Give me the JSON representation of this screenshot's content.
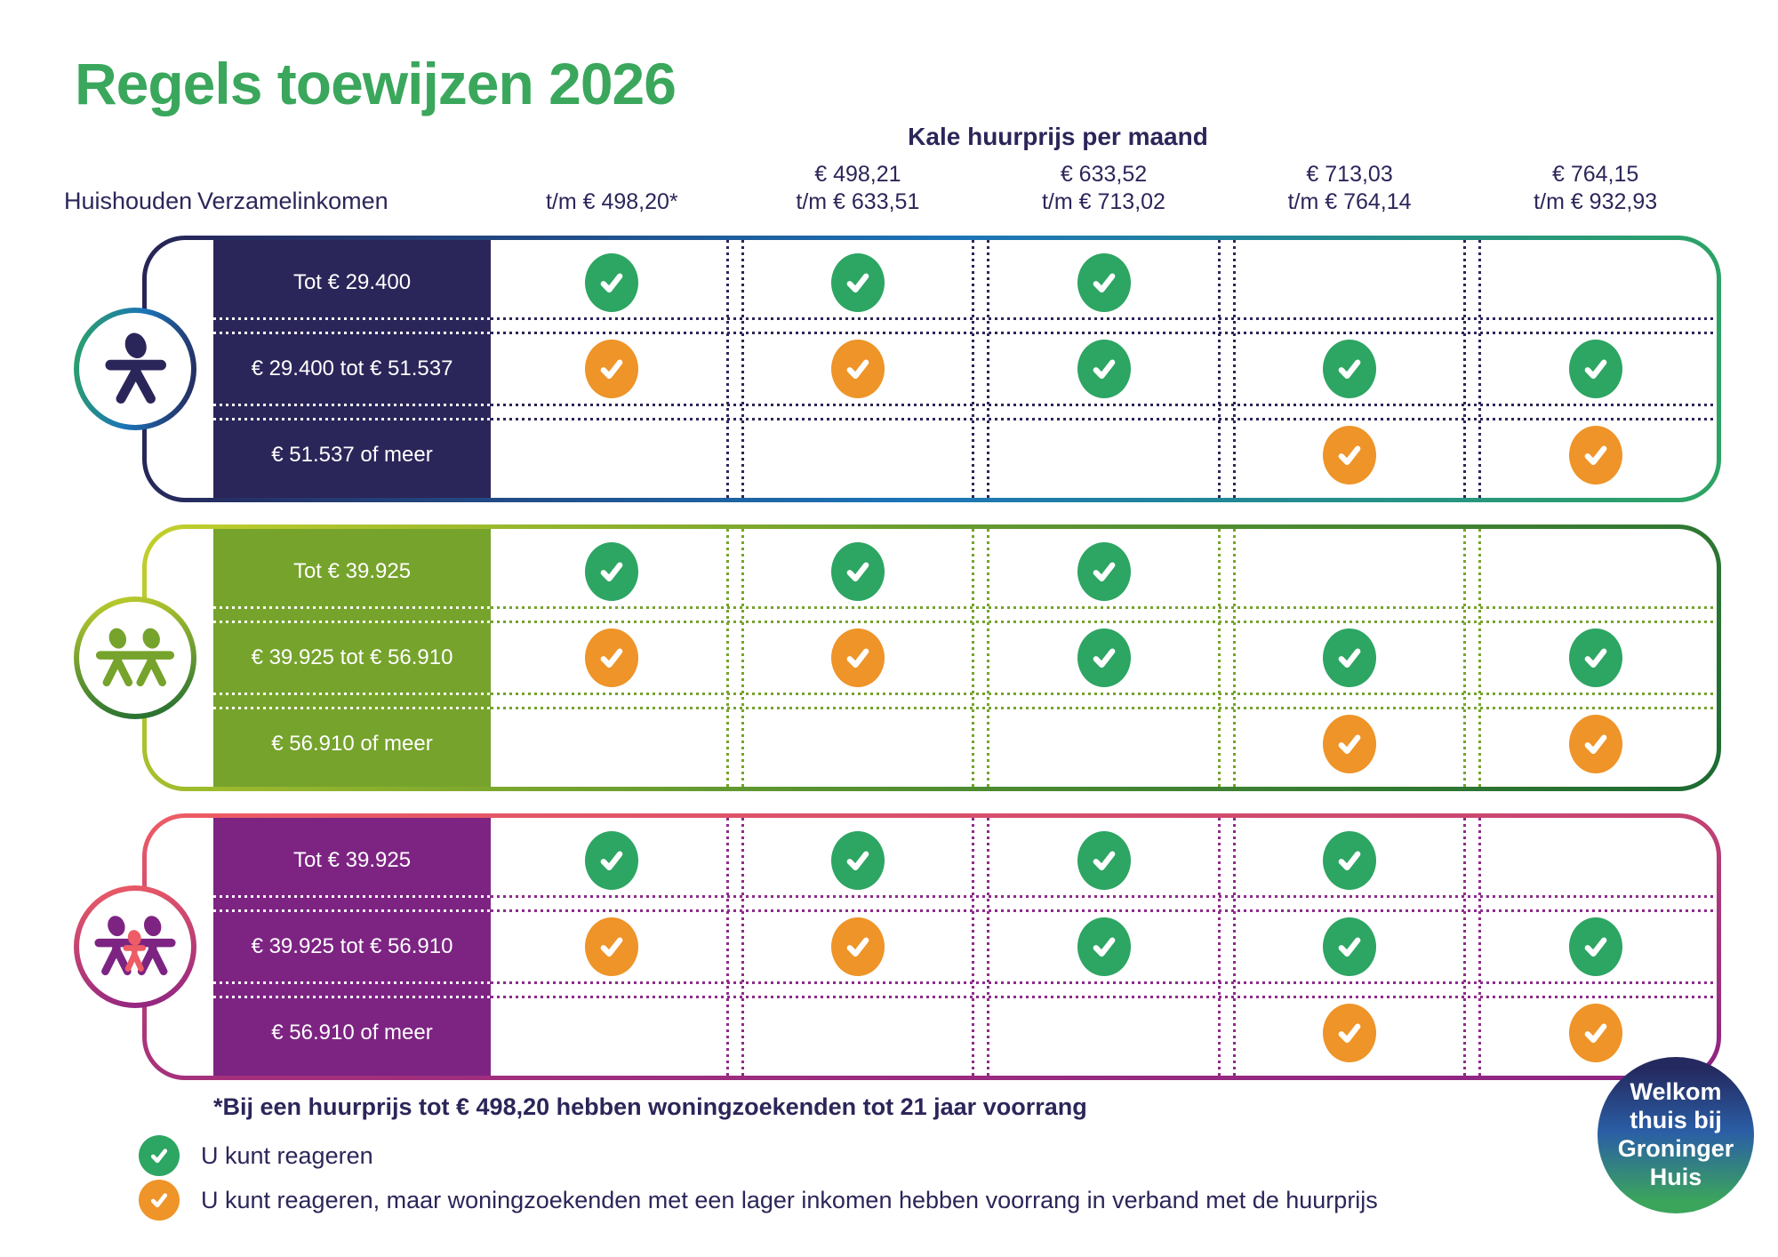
{
  "title": "Regels toewijzen 2026",
  "header": {
    "price_group": "Kale huurprijs per maand",
    "household": "Huishouden",
    "income": "Verzamelinkomen",
    "price_columns": [
      [
        "t/m € 498,20*"
      ],
      [
        "€ 498,21",
        "t/m € 633,51"
      ],
      [
        "€ 633,52",
        "t/m € 713,02"
      ],
      [
        "€ 713,03",
        "t/m € 764,14"
      ],
      [
        "€ 764,15",
        "t/m € 932,93"
      ]
    ]
  },
  "marks": {
    "green": "#2da563",
    "orange": "#ee9428"
  },
  "groups": [
    {
      "id": "single-person",
      "icon": "single-person-icon",
      "theme": {
        "label_bg": "#2b2659",
        "dash": "#2b2659",
        "border_gradient": [
          "#272355",
          "#1b74b8",
          "#2da563"
        ],
        "icon_gradient": [
          "#2da563",
          "#1b74b8",
          "#272355"
        ]
      },
      "rows": [
        {
          "income": "Tot € 29.400",
          "cells": [
            "green",
            "green",
            "green",
            null,
            null
          ]
        },
        {
          "income": "€ 29.400 tot € 51.537",
          "cells": [
            "orange",
            "orange",
            "green",
            "green",
            "green"
          ]
        },
        {
          "income": "€ 51.537 of meer",
          "cells": [
            null,
            null,
            null,
            "orange",
            "orange"
          ]
        }
      ]
    },
    {
      "id": "two-persons",
      "icon": "two-persons-icon",
      "theme": {
        "label_bg": "#76a32c",
        "dash": "#76a32c",
        "border_gradient": [
          "#c3d02c",
          "#5a9430",
          "#1c6a33"
        ],
        "icon_gradient": [
          "#c3d02c",
          "#1c6a33"
        ]
      },
      "rows": [
        {
          "income": "Tot € 39.925",
          "cells": [
            "green",
            "green",
            "green",
            null,
            null
          ]
        },
        {
          "income": "€ 39.925 tot € 56.910",
          "cells": [
            "orange",
            "orange",
            "green",
            "green",
            "green"
          ]
        },
        {
          "income": "€ 56.910 of meer",
          "cells": [
            null,
            null,
            null,
            "orange",
            "orange"
          ]
        }
      ]
    },
    {
      "id": "family-with-children",
      "icon": "family-icon",
      "theme": {
        "label_bg": "#7d2483",
        "dash": "#8d2b8a",
        "border_gradient": [
          "#ef5d64",
          "#b03878",
          "#8d2383"
        ],
        "icon_gradient": [
          "#ef5d64",
          "#8d2383"
        ]
      },
      "rows": [
        {
          "income": "Tot € 39.925",
          "cells": [
            "green",
            "green",
            "green",
            "green",
            null
          ]
        },
        {
          "income": "€ 39.925 tot € 56.910",
          "cells": [
            "orange",
            "orange",
            "green",
            "green",
            "green"
          ]
        },
        {
          "income": "€ 56.910 of meer",
          "cells": [
            null,
            null,
            null,
            "orange",
            "orange"
          ]
        }
      ]
    }
  ],
  "footnote": "*Bij een huurprijs tot € 498,20 hebben woningzoekenden tot 21 jaar voorrang",
  "legend": [
    {
      "mark": "green",
      "label": "U kunt reageren"
    },
    {
      "mark": "orange",
      "label": "U kunt reageren, maar woningzoekenden met een lager inkomen hebben voorrang in verband met de huurprijs"
    }
  ],
  "badge": {
    "lines": [
      "Welkom",
      "thuis bij",
      "Groninger",
      "Huis"
    ]
  },
  "colors": {
    "title": "#3aa75c",
    "text": "#2b2659"
  }
}
